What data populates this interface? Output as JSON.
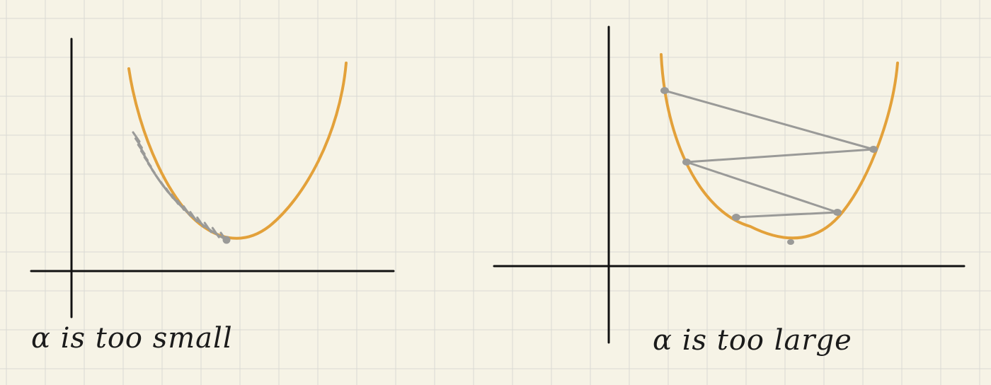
{
  "panels": [
    {
      "caption": "α is too small"
    },
    {
      "caption": "α is too large"
    }
  ],
  "colors": {
    "background": "#f6f3e6",
    "grid": "#d9d9d4",
    "axis": "#111111",
    "curve": "#e3a13a",
    "steps": "#9a9a98"
  }
}
